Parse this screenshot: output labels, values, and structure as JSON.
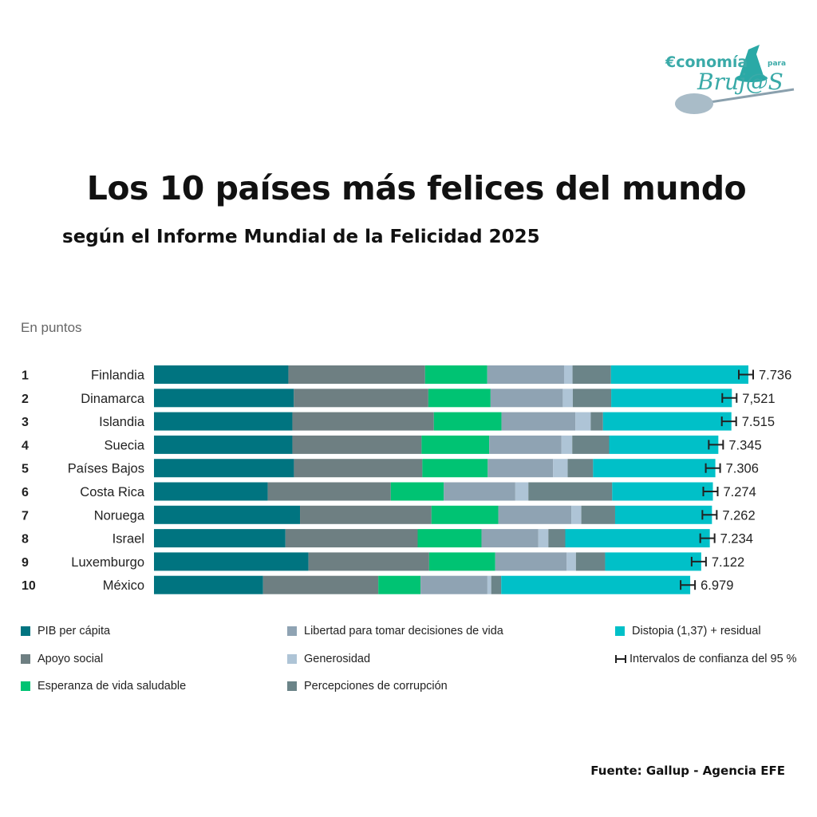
{
  "logo": {
    "line1": "€conomía",
    "line2_small": "para",
    "line3": "Bruj@S"
  },
  "header": {
    "title": "Los 10 países más felices del mundo",
    "subtitle": "según el Informe Mundial de la Felicidad 2025"
  },
  "chart_data": {
    "type": "bar",
    "orientation": "horizontal-stacked",
    "title": "Los 10 países más felices del mundo",
    "subtitle": "según el Informe Mundial de la Felicidad 2025",
    "unit_label": "En puntos",
    "xlim": [
      0,
      7.736
    ],
    "grid": false,
    "legend_position": "bottom",
    "ranks": [
      "1",
      "2",
      "3",
      "4",
      "5",
      "6",
      "7",
      "8",
      "9",
      "10"
    ],
    "categories": [
      "Finlandia",
      "Dinamarca",
      "Islandia",
      "Suecia",
      "Países Bajos",
      "Costa Rica",
      "Noruega",
      "Israel",
      "Luxemburgo",
      "México"
    ],
    "totals": [
      7.736,
      7.521,
      7.515,
      7.345,
      7.306,
      7.274,
      7.262,
      7.234,
      7.122,
      6.979
    ],
    "total_labels": [
      "7.736",
      "7,521",
      "7.515",
      "7.345",
      "7.306",
      "7.274",
      "7.262",
      "7.234",
      "7.122",
      "6.979"
    ],
    "series": [
      {
        "name": "PIB per cápita",
        "color": "#007480",
        "values": [
          1.75,
          1.82,
          1.8,
          1.8,
          1.82,
          1.48,
          1.9,
          1.71,
          2.01,
          1.42
        ]
      },
      {
        "name": "Apoyo social",
        "color": "#6e7f82",
        "values": [
          1.78,
          1.75,
          1.84,
          1.68,
          1.67,
          1.6,
          1.71,
          1.72,
          1.57,
          1.5
        ]
      },
      {
        "name": "Esperanza de vida saludable",
        "color": "#00c373",
        "values": [
          0.81,
          0.81,
          0.88,
          0.88,
          0.85,
          0.69,
          0.87,
          0.83,
          0.86,
          0.55
        ]
      },
      {
        "name": "Libertad para tomar decisiones de vida",
        "color": "#8fa3b3",
        "values": [
          1.0,
          0.94,
          0.96,
          0.94,
          0.85,
          0.93,
          0.95,
          0.74,
          0.93,
          0.87
        ]
      },
      {
        "name": "Generosidad",
        "color": "#aec4d6",
        "values": [
          0.11,
          0.13,
          0.2,
          0.14,
          0.19,
          0.17,
          0.13,
          0.13,
          0.12,
          0.05
        ]
      },
      {
        "name": "Percepciones de corrupción",
        "color": "#6b8488",
        "values": [
          0.5,
          0.5,
          0.16,
          0.48,
          0.33,
          1.09,
          0.44,
          0.22,
          0.38,
          0.13
        ]
      },
      {
        "name": "Distopia (1,37) + residual",
        "color": "#00c0c8",
        "values": [
          1.79,
          1.57,
          1.67,
          1.42,
          1.59,
          1.31,
          1.26,
          1.88,
          1.25,
          2.46
        ]
      }
    ],
    "ci_label": "Intervalos de confianza del 95 %"
  },
  "legend": {
    "items": [
      {
        "label": "PIB per cápita",
        "color": "#007480"
      },
      {
        "label": "Apoyo social",
        "color": "#6e7f82"
      },
      {
        "label": "Esperanza de vida saludable",
        "color": "#00c373"
      },
      {
        "label": "Libertad para tomar decisiones de vida",
        "color": "#8fa3b3"
      },
      {
        "label": "Generosidad",
        "color": "#aec4d6"
      },
      {
        "label": "Percepciones de corrupción",
        "color": "#6b8488"
      },
      {
        "label": "Distopia (1,37) + residual",
        "color": "#00c0c8"
      }
    ],
    "ci_label": "Intervalos de confianza del 95 %"
  },
  "source": "Fuente: Gallup - Agencia EFE"
}
